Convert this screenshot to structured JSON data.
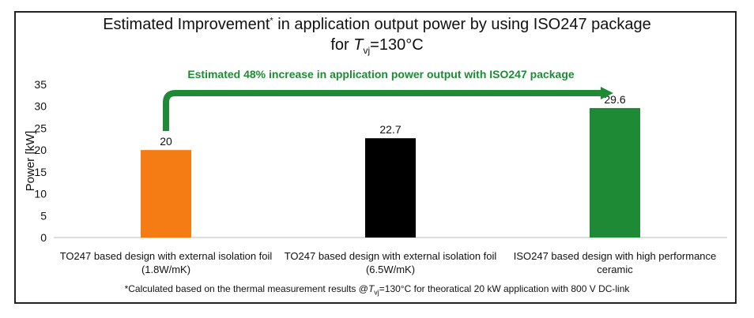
{
  "chart_data": {
    "type": "bar",
    "title_line1": "Estimated Improvement",
    "title_star": "*",
    "title_line1_rest": " in application output power by using ISO247 package",
    "title_line2_pre": "for ",
    "title_T": "T",
    "title_sub": "vj",
    "title_line2_post": "=130°C",
    "ylabel": "Power [kW]",
    "ylim": [
      0,
      35
    ],
    "yticks": [
      "0",
      "5",
      "10",
      "15",
      "20",
      "25",
      "30",
      "35"
    ],
    "categories": [
      [
        "TO247 based design with external isolation foil",
        "(1.8W/mK)"
      ],
      [
        "TO247 based design with external isolation foil",
        "(6.5W/mK)"
      ],
      [
        "ISO247 based design with high performance",
        "ceramic"
      ]
    ],
    "values": [
      20,
      22.7,
      29.6
    ],
    "value_labels": [
      "20",
      "22.7",
      "29.6"
    ],
    "colors": [
      "#f57c14",
      "#000000",
      "#1f8a35"
    ],
    "annotation": "Estimated 48% increase in application power output with ISO247 package",
    "annotation_color": "#1f8a35",
    "footnote_pre": "*Calculated based on the thermal measurement results @",
    "footnote_T": "T",
    "footnote_sub": "vj",
    "footnote_post": "=130°C for theoratical 20 kW application with 800 V DC-link",
    "grid": false,
    "legend": "none"
  }
}
